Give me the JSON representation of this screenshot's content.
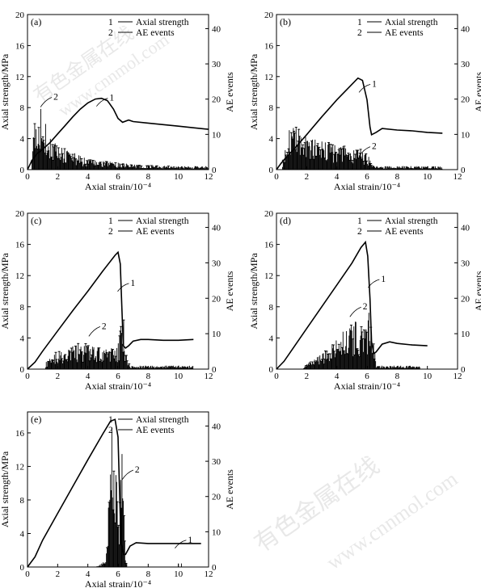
{
  "shared": {
    "xlabel": "Axial strain/10⁻⁴",
    "ylabel_left": "Axial strength/MPa",
    "ylabel_right": "AE events",
    "legend": [
      {
        "key": "1",
        "label": "Axial strength"
      },
      {
        "key": "2",
        "label": "AE events"
      }
    ],
    "watermark_cn": "有色金属在线",
    "watermark_url": "www.cnnmol.com"
  },
  "chart_data": [
    {
      "panel": "(a)",
      "type": "line+bar",
      "xlim": [
        0,
        12
      ],
      "xticks": [
        0,
        2,
        4,
        6,
        8,
        10,
        12
      ],
      "ylim_left": [
        0,
        20
      ],
      "yticks_left": [
        0,
        4,
        8,
        12,
        16,
        20
      ],
      "ylim_right": [
        0,
        44
      ],
      "yticks_right": [
        0,
        10,
        20,
        30,
        40
      ],
      "strength": {
        "x": [
          0,
          0.3,
          0.6,
          1,
          1.5,
          2,
          2.5,
          3,
          3.5,
          4,
          4.5,
          4.9,
          5.3,
          5.7,
          6.0,
          6.3,
          6.7,
          7,
          8,
          9,
          10,
          11,
          12
        ],
        "y": [
          0,
          1.2,
          2.0,
          2.6,
          3.5,
          4.6,
          5.7,
          6.8,
          7.8,
          8.6,
          9.1,
          9.2,
          8.9,
          7.8,
          6.6,
          6.1,
          6.4,
          6.2,
          6.0,
          5.8,
          5.6,
          5.4,
          5.2
        ]
      },
      "ae_profile": [
        [
          0.3,
          10
        ],
        [
          0.6,
          17
        ],
        [
          0.8,
          20
        ],
        [
          1.0,
          16
        ],
        [
          1.3,
          12
        ],
        [
          1.6,
          9
        ],
        [
          2.0,
          7
        ],
        [
          2.5,
          6
        ],
        [
          3.0,
          5
        ],
        [
          3.5,
          4
        ],
        [
          4.0,
          3
        ],
        [
          5.0,
          2.5
        ],
        [
          6.0,
          2
        ],
        [
          7.0,
          1.5
        ],
        [
          8.0,
          1.2
        ],
        [
          10.0,
          1
        ],
        [
          12.0,
          1
        ]
      ],
      "ae_range": [
        0.3,
        12
      ],
      "callouts": [
        {
          "text": "1",
          "x": 5.0,
          "y": 9.2
        },
        {
          "text": "2",
          "x": 1.4,
          "y": 20.5
        }
      ]
    },
    {
      "panel": "(b)",
      "type": "line+bar",
      "xlim": [
        0,
        12
      ],
      "xticks": [
        0,
        2,
        4,
        6,
        8,
        10,
        12
      ],
      "ylim_left": [
        0,
        20
      ],
      "yticks_left": [
        0,
        4,
        8,
        12,
        16,
        20
      ],
      "ylim_right": [
        0,
        44
      ],
      "yticks_right": [
        0,
        10,
        20,
        30,
        40
      ],
      "strength": {
        "x": [
          0,
          0.3,
          0.6,
          1,
          2,
          3,
          4,
          5,
          5.4,
          5.7,
          6.0,
          6.2,
          6.3,
          6.6,
          7,
          8,
          9,
          10,
          11
        ],
        "y": [
          0,
          0.8,
          1.5,
          2.3,
          4.5,
          6.8,
          9.0,
          11.0,
          11.8,
          11.5,
          9.0,
          5.5,
          4.5,
          4.8,
          5.3,
          5.1,
          5.0,
          4.8,
          4.7
        ]
      },
      "ae_profile": [
        [
          0.4,
          3
        ],
        [
          0.8,
          11
        ],
        [
          1.2,
          13
        ],
        [
          1.6,
          12
        ],
        [
          2.0,
          10
        ],
        [
          2.5,
          9
        ],
        [
          3.0,
          8
        ],
        [
          3.5,
          8
        ],
        [
          4.0,
          7
        ],
        [
          4.5,
          7
        ],
        [
          5.0,
          6
        ],
        [
          5.5,
          6
        ],
        [
          6.0,
          5
        ],
        [
          6.2,
          3
        ],
        [
          6.5,
          1
        ],
        [
          8.0,
          1
        ],
        [
          11.0,
          1
        ]
      ],
      "ae_range": [
        0.4,
        11
      ],
      "callouts": [
        {
          "text": "1",
          "x": 5.9,
          "y": 11.0
        },
        {
          "text": "2",
          "x": 6.0,
          "y": 6.5
        }
      ]
    },
    {
      "panel": "(c)",
      "type": "line+bar",
      "xlim": [
        0,
        12
      ],
      "xticks": [
        0,
        2,
        4,
        6,
        8,
        10,
        12
      ],
      "ylim_left": [
        0,
        20
      ],
      "yticks_left": [
        0,
        4,
        8,
        12,
        16,
        20
      ],
      "ylim_right": [
        0,
        44
      ],
      "yticks_right": [
        0,
        10,
        20,
        30,
        40
      ],
      "strength": {
        "x": [
          0,
          0.5,
          1,
          2,
          3,
          4,
          5,
          5.8,
          6.0,
          6.15,
          6.25,
          6.35,
          6.5,
          6.7,
          7,
          7.5,
          8,
          9,
          10,
          11
        ],
        "y": [
          0,
          0.9,
          2.3,
          4.9,
          7.5,
          10.0,
          12.6,
          14.6,
          15.0,
          13.5,
          8.0,
          3.0,
          2.7,
          3.0,
          3.6,
          3.8,
          3.8,
          3.7,
          3.7,
          3.8
        ]
      },
      "ae_profile": [
        [
          1.2,
          2
        ],
        [
          1.8,
          5
        ],
        [
          2.5,
          6
        ],
        [
          3.0,
          7
        ],
        [
          3.5,
          8
        ],
        [
          4.0,
          7
        ],
        [
          4.5,
          7
        ],
        [
          5.0,
          6
        ],
        [
          5.5,
          6
        ],
        [
          6.0,
          7
        ],
        [
          6.2,
          14
        ],
        [
          6.35,
          16
        ],
        [
          6.5,
          5
        ],
        [
          6.8,
          1
        ],
        [
          8.0,
          1
        ],
        [
          11.0,
          1
        ]
      ],
      "ae_range": [
        1.2,
        11
      ],
      "callouts": [
        {
          "text": "1",
          "x": 6.4,
          "y": 11.0
        },
        {
          "text": "2",
          "x": 4.6,
          "y": 12.0
        }
      ]
    },
    {
      "panel": "(d)",
      "type": "line+bar",
      "xlim": [
        0,
        12
      ],
      "xticks": [
        0,
        2,
        4,
        6,
        8,
        10,
        12
      ],
      "ylim_left": [
        0,
        20
      ],
      "yticks_left": [
        0,
        4,
        8,
        12,
        16,
        20
      ],
      "ylim_right": [
        0,
        44
      ],
      "yticks_right": [
        0,
        10,
        20,
        30,
        40
      ],
      "strength": {
        "x": [
          0,
          0.5,
          1,
          2,
          3,
          4,
          5,
          5.6,
          5.9,
          6.05,
          6.2,
          6.3,
          6.45,
          6.6,
          7,
          7.5,
          8,
          9,
          10
        ],
        "y": [
          0,
          1.0,
          2.4,
          5.2,
          8.0,
          10.8,
          13.6,
          15.6,
          16.3,
          14.5,
          9.0,
          3.5,
          2.0,
          2.2,
          3.2,
          3.5,
          3.3,
          3.1,
          3.0
        ]
      },
      "ae_profile": [
        [
          1.8,
          1
        ],
        [
          2.5,
          3
        ],
        [
          3.0,
          5
        ],
        [
          3.5,
          7
        ],
        [
          4.0,
          9
        ],
        [
          4.5,
          11
        ],
        [
          5.0,
          13
        ],
        [
          5.3,
          15
        ],
        [
          5.6,
          13
        ],
        [
          5.9,
          12
        ],
        [
          6.1,
          16
        ],
        [
          6.3,
          21
        ],
        [
          6.45,
          10
        ],
        [
          6.6,
          1
        ],
        [
          8.0,
          1
        ],
        [
          9.5,
          1
        ]
      ],
      "ae_range": [
        1.8,
        9.5
      ],
      "callouts": [
        {
          "text": "1",
          "x": 6.5,
          "y": 11.5
        },
        {
          "text": "2",
          "x": 5.4,
          "y": 17.5
        }
      ]
    },
    {
      "panel": "(e)",
      "type": "line+bar",
      "xlim": [
        0,
        12
      ],
      "xticks": [
        0,
        2,
        4,
        6,
        8,
        10,
        12
      ],
      "ylim_left": [
        0,
        18.5
      ],
      "yticks_left": [
        0,
        4,
        8,
        12,
        16
      ],
      "ylim_right": [
        0,
        44
      ],
      "yticks_right": [
        0,
        10,
        20,
        30,
        40
      ],
      "strength": {
        "x": [
          0,
          0.5,
          1,
          2,
          3,
          4,
          5,
          5.5,
          5.8,
          6.0,
          6.1,
          6.2,
          6.35,
          6.5,
          6.8,
          7.2,
          8,
          9,
          10,
          11,
          11.5
        ],
        "y": [
          0,
          1.2,
          3.2,
          6.4,
          9.6,
          12.8,
          15.9,
          17.4,
          17.6,
          15.5,
          9.0,
          3.0,
          1.5,
          1.5,
          2.5,
          2.9,
          2.8,
          2.8,
          2.8,
          2.8,
          2.8
        ]
      },
      "ae_profile": [
        [
          4.6,
          0
        ],
        [
          5.2,
          2
        ],
        [
          5.4,
          20
        ],
        [
          5.6,
          41
        ],
        [
          5.75,
          32
        ],
        [
          5.9,
          25
        ],
        [
          6.05,
          18
        ],
        [
          6.2,
          30
        ],
        [
          6.35,
          39
        ],
        [
          6.45,
          8
        ],
        [
          6.6,
          0
        ]
      ],
      "ae_range": [
        4.6,
        6.6
      ],
      "ae_extra": [
        [
          10.0,
          1
        ],
        [
          10.2,
          1
        ]
      ],
      "callouts": [
        {
          "text": "1",
          "x": 10.2,
          "y": 3.2
        },
        {
          "text": "2",
          "x": 6.8,
          "y": 27.5
        }
      ]
    }
  ]
}
